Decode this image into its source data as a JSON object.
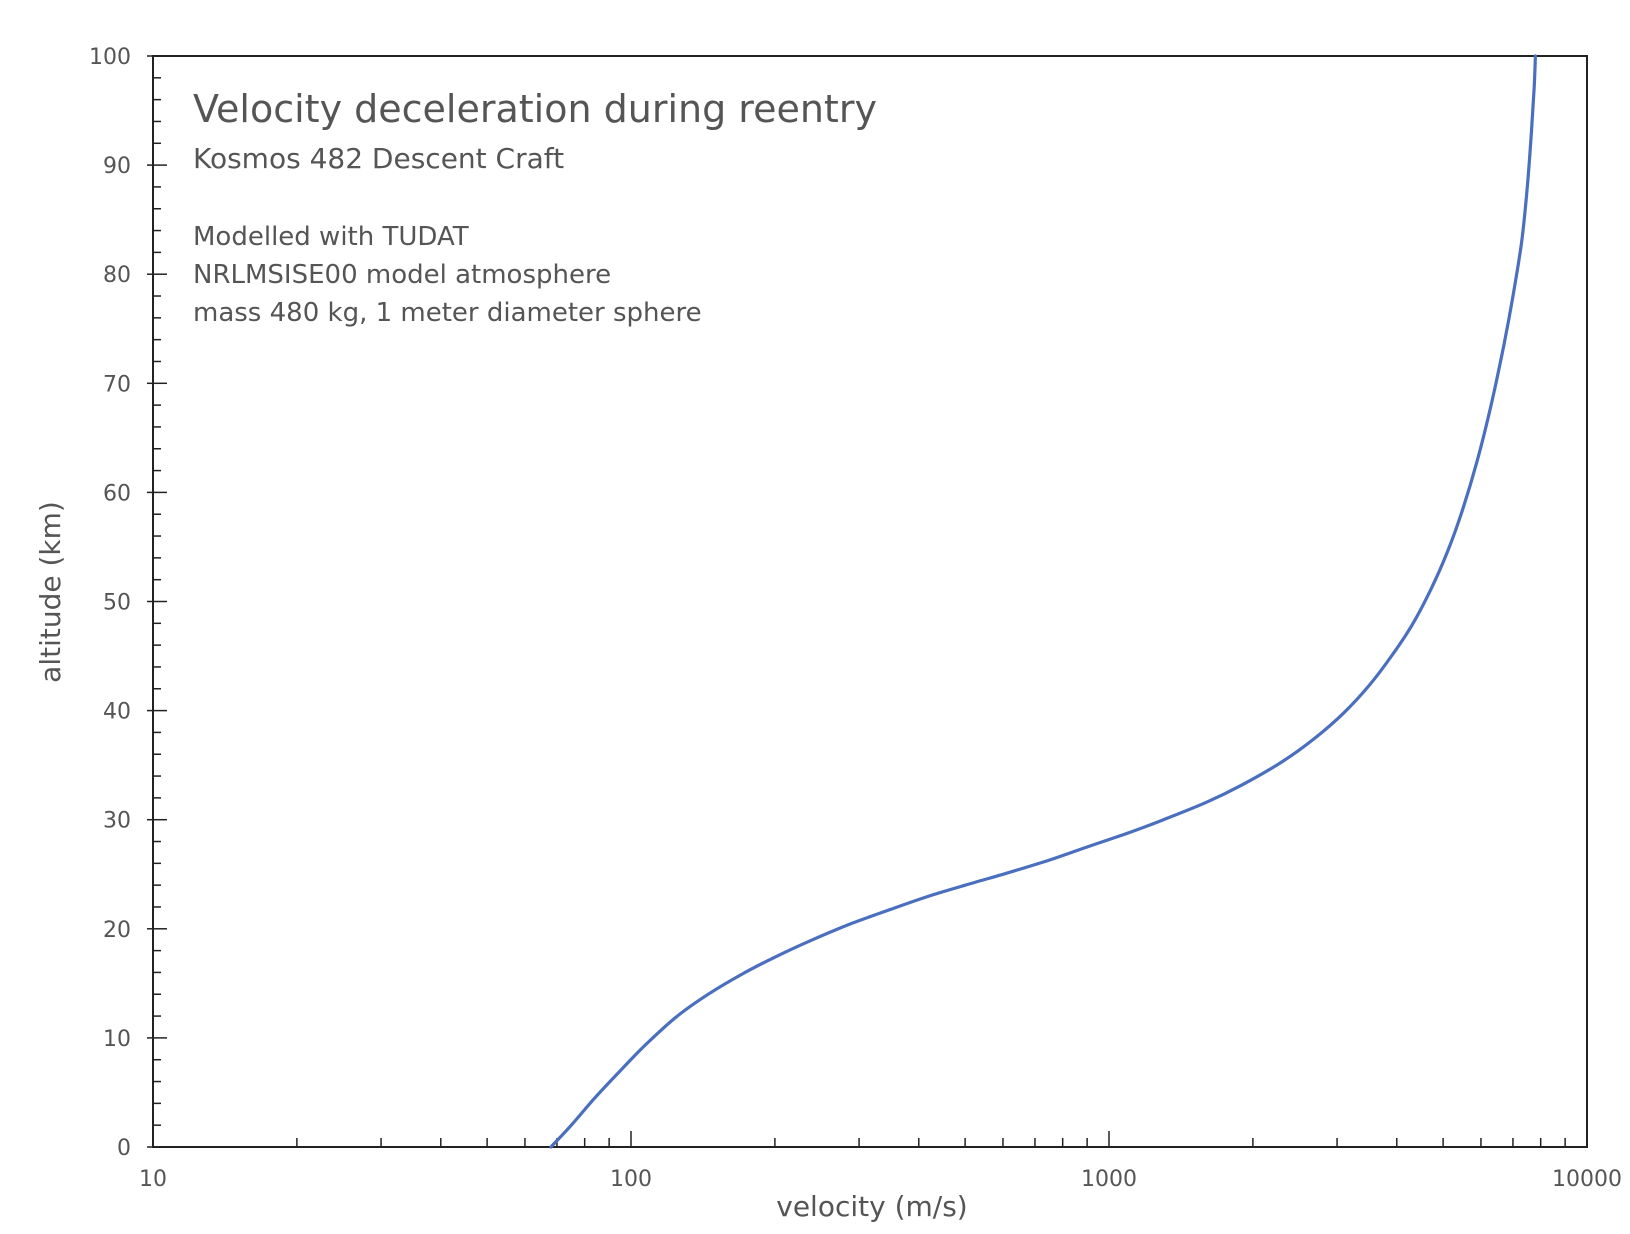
{
  "chart_data": {
    "type": "line",
    "title": "Velocity deceleration during reentry",
    "subtitle": "Kosmos 482 Descent Craft",
    "notes": [
      "Modelled with TUDAT",
      "NRLMSISE00 model atmosphere",
      "mass 480 kg, 1 meter diameter sphere"
    ],
    "xlabel": "velocity (m/s)",
    "ylabel": "altitude (km)",
    "xscale": "log",
    "xlim": [
      10,
      10000
    ],
    "ylim": [
      0,
      100
    ],
    "xticks": [
      "10",
      "100",
      "1000",
      "10000"
    ],
    "yticks": [
      "0",
      "10",
      "20",
      "30",
      "40",
      "50",
      "60",
      "70",
      "80",
      "90",
      "100"
    ],
    "grid": false,
    "legend": "none",
    "line_color": "#4a6fbf",
    "series": [
      {
        "points": [
          [
            68,
            0
          ],
          [
            75,
            2
          ],
          [
            84,
            4.5
          ],
          [
            95,
            7
          ],
          [
            108,
            9.5
          ],
          [
            125,
            12
          ],
          [
            145,
            14
          ],
          [
            170,
            15.8
          ],
          [
            200,
            17.4
          ],
          [
            240,
            19
          ],
          [
            290,
            20.5
          ],
          [
            350,
            21.8
          ],
          [
            420,
            23
          ],
          [
            500,
            24
          ],
          [
            600,
            25
          ],
          [
            750,
            26.3
          ],
          [
            900,
            27.5
          ],
          [
            1100,
            28.8
          ],
          [
            1300,
            30
          ],
          [
            1600,
            31.6
          ],
          [
            1900,
            33.2
          ],
          [
            2300,
            35.3
          ],
          [
            2700,
            37.5
          ],
          [
            3100,
            39.8
          ],
          [
            3500,
            42.3
          ],
          [
            3900,
            45
          ],
          [
            4300,
            47.8
          ],
          [
            4700,
            51
          ],
          [
            5100,
            54.5
          ],
          [
            5500,
            58.5
          ],
          [
            5900,
            63
          ],
          [
            6300,
            68
          ],
          [
            6700,
            73.5
          ],
          [
            7000,
            78
          ],
          [
            7300,
            83
          ],
          [
            7500,
            88
          ],
          [
            7650,
            93
          ],
          [
            7750,
            97
          ],
          [
            7800,
            100
          ]
        ]
      }
    ]
  }
}
